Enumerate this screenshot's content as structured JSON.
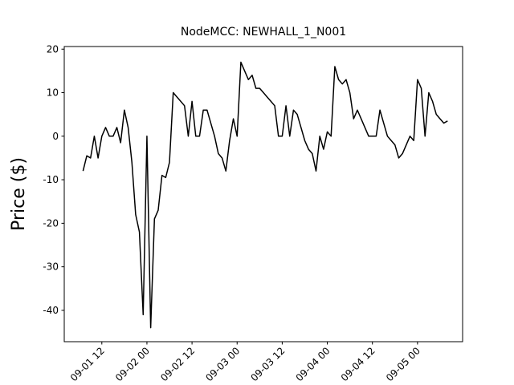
{
  "chart_data": {
    "type": "line",
    "title": "NodeMCC: NEWHALL_1_N001",
    "y_label": "Price ($)",
    "x": [
      "09-01 07",
      "09-01 08",
      "09-01 09",
      "09-01 10",
      "09-01 11",
      "09-01 12",
      "09-01 13",
      "09-01 14",
      "09-01 15",
      "09-01 16",
      "09-01 17",
      "09-01 18",
      "09-01 19",
      "09-01 20",
      "09-01 21",
      "09-01 22",
      "09-01 23",
      "09-02 00",
      "09-02 01",
      "09-02 02",
      "09-02 03",
      "09-02 04",
      "09-02 05",
      "09-02 06",
      "09-02 07",
      "09-02 08",
      "09-02 09",
      "09-02 10",
      "09-02 11",
      "09-02 12",
      "09-02 13",
      "09-02 14",
      "09-02 15",
      "09-02 16",
      "09-02 17",
      "09-02 18",
      "09-02 19",
      "09-02 20",
      "09-02 21",
      "09-02 22",
      "09-02 23",
      "09-03 00",
      "09-03 01",
      "09-03 02",
      "09-03 03",
      "09-03 04",
      "09-03 05",
      "09-03 06",
      "09-03 07",
      "09-03 08",
      "09-03 09",
      "09-03 10",
      "09-03 11",
      "09-03 12",
      "09-03 13",
      "09-03 14",
      "09-03 15",
      "09-03 16",
      "09-03 17",
      "09-03 18",
      "09-03 19",
      "09-03 20",
      "09-03 21",
      "09-03 22",
      "09-03 23",
      "09-04 00",
      "09-04 01",
      "09-04 02",
      "09-04 03",
      "09-04 04",
      "09-04 05",
      "09-04 06",
      "09-04 07",
      "09-04 08",
      "09-04 09",
      "09-04 10",
      "09-04 11",
      "09-04 12",
      "09-04 13",
      "09-04 14",
      "09-04 15",
      "09-04 16",
      "09-04 17",
      "09-04 18",
      "09-04 19",
      "09-04 20",
      "09-04 21",
      "09-04 22",
      "09-04 23",
      "09-05 00",
      "09-05 01",
      "09-05 02",
      "09-05 03",
      "09-05 04",
      "09-05 05",
      "09-05 06",
      "09-05 07",
      "09-05 08"
    ],
    "series": [
      {
        "color": "#000000",
        "values": [
          -8,
          -4.5,
          -5,
          0,
          -5,
          0,
          2,
          0,
          0,
          2,
          -1.5,
          6,
          2,
          -6,
          -18,
          -22,
          -41,
          0,
          -44,
          -19,
          -17,
          -9,
          -9.5,
          -6,
          10,
          9,
          8,
          7,
          0,
          8,
          0,
          0,
          6,
          6,
          3,
          0,
          -4,
          -5,
          -8,
          -1,
          4,
          0,
          17,
          15,
          13,
          14,
          11,
          11,
          10,
          9,
          8,
          7,
          0,
          0,
          7,
          0,
          6,
          5,
          2,
          -1,
          -3,
          -4,
          -8,
          0,
          -3,
          1,
          0,
          16,
          13,
          12,
          13,
          10,
          4,
          6,
          4,
          2,
          0,
          0,
          0,
          6,
          3,
          0,
          -1,
          -2,
          -5,
          -4,
          -2,
          0,
          -1,
          13,
          11,
          0,
          10,
          8,
          5,
          4,
          3,
          3.5
        ]
      }
    ],
    "xlim": [
      "09-01 02",
      "09-05 12"
    ],
    "xticks": [
      "09-01 12",
      "09-02 00",
      "09-02 12",
      "09-03 00",
      "09-03 12",
      "09-04 00",
      "09-04 12",
      "09-05 00"
    ],
    "ylim": [
      -47.2,
      20.6
    ],
    "yticks": [
      20,
      10,
      0,
      -10,
      -20,
      -30,
      -40
    ]
  }
}
